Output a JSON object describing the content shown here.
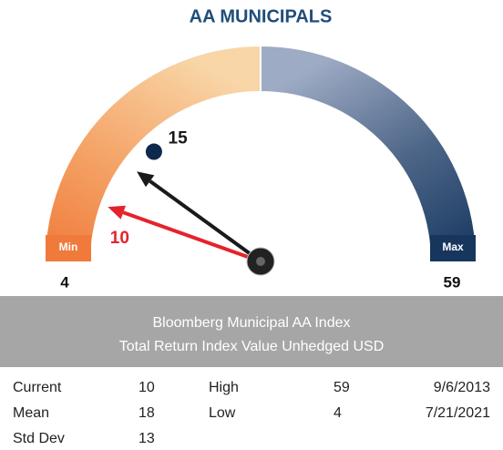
{
  "chart_data": {
    "type": "gauge",
    "title": "AA MUNICIPALS",
    "min_label": "Min",
    "max_label": "Max",
    "ylim": [
      4,
      59
    ],
    "low_color": "#ef7a3a",
    "high_color": "#16365e",
    "needles": [
      {
        "value": 15,
        "color": "#1a1a1a"
      },
      {
        "value": 10,
        "color": "#e5232b"
      }
    ],
    "marker": {
      "value": 18,
      "color": "#0d2a4e"
    }
  },
  "panel": {
    "lines": [
      "Bloomberg Municipal AA Index",
      "Total Return Index Value Unhedged USD"
    ]
  },
  "table": {
    "rows": [
      [
        "Current",
        10,
        "High",
        59,
        "9/6/2013"
      ],
      [
        "Mean",
        18,
        "Low",
        4,
        "7/21/2021"
      ],
      [
        "Std Dev",
        13
      ]
    ]
  }
}
